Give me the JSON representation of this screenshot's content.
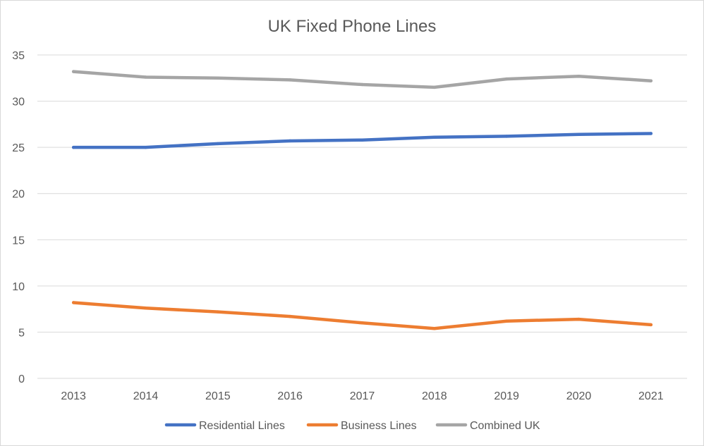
{
  "chart_data": {
    "type": "line",
    "title": "UK Fixed Phone Lines",
    "xlabel": "",
    "ylabel": "",
    "categories": [
      "2013",
      "2014",
      "2015",
      "2016",
      "2017",
      "2018",
      "2019",
      "2020",
      "2021"
    ],
    "ylim": [
      0,
      35
    ],
    "yticks": [
      "0",
      "5",
      "10",
      "15",
      "20",
      "25",
      "30",
      "35"
    ],
    "grid": true,
    "legend_position": "bottom",
    "series": [
      {
        "name": "Residential Lines",
        "color": "#4472C4",
        "values": [
          25.0,
          25.0,
          25.4,
          25.7,
          25.8,
          26.1,
          26.2,
          26.4,
          26.5
        ]
      },
      {
        "name": "Business Lines",
        "color": "#ED7D31",
        "values": [
          8.2,
          7.6,
          7.2,
          6.7,
          6.0,
          5.4,
          6.2,
          6.4,
          5.8
        ]
      },
      {
        "name": "Combined UK",
        "color": "#A5A5A5",
        "values": [
          33.2,
          32.6,
          32.5,
          32.3,
          31.8,
          31.5,
          32.4,
          32.7,
          32.2
        ]
      }
    ]
  }
}
